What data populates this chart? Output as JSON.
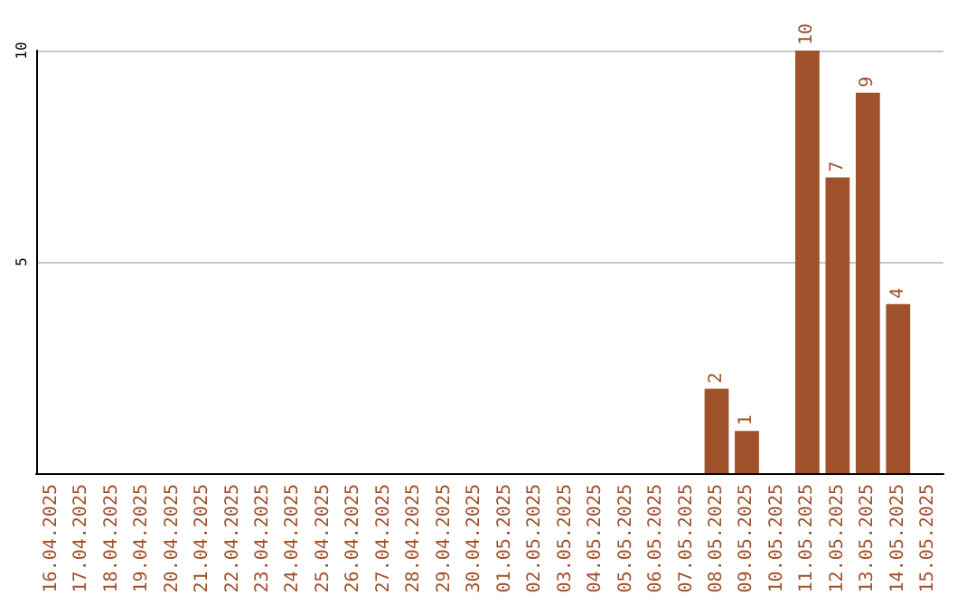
{
  "chart_data": {
    "type": "bar",
    "categories": [
      "16.04.2025",
      "17.04.2025",
      "18.04.2025",
      "19.04.2025",
      "20.04.2025",
      "21.04.2025",
      "22.04.2025",
      "23.04.2025",
      "24.04.2025",
      "25.04.2025",
      "26.04.2025",
      "27.04.2025",
      "28.04.2025",
      "29.04.2025",
      "30.04.2025",
      "01.05.2025",
      "02.05.2025",
      "03.05.2025",
      "04.05.2025",
      "05.05.2025",
      "06.05.2025",
      "07.05.2025",
      "08.05.2025",
      "09.05.2025",
      "10.05.2025",
      "11.05.2025",
      "12.05.2025",
      "13.05.2025",
      "14.05.2025",
      "15.05.2025"
    ],
    "values": [
      0,
      0,
      0,
      0,
      0,
      0,
      0,
      0,
      0,
      0,
      0,
      0,
      0,
      0,
      0,
      0,
      0,
      0,
      0,
      0,
      0,
      0,
      2,
      1,
      0,
      10,
      7,
      9,
      4,
      0
    ],
    "value_labels": [
      null,
      null,
      null,
      null,
      null,
      null,
      null,
      null,
      null,
      null,
      null,
      null,
      null,
      null,
      null,
      null,
      null,
      null,
      null,
      null,
      null,
      null,
      "2",
      "1",
      null,
      "10",
      "7",
      "9",
      "4",
      null
    ],
    "color": "#a0522d",
    "ylim": [
      0,
      10
    ],
    "yticks": [
      5,
      10
    ],
    "grid": "y"
  }
}
